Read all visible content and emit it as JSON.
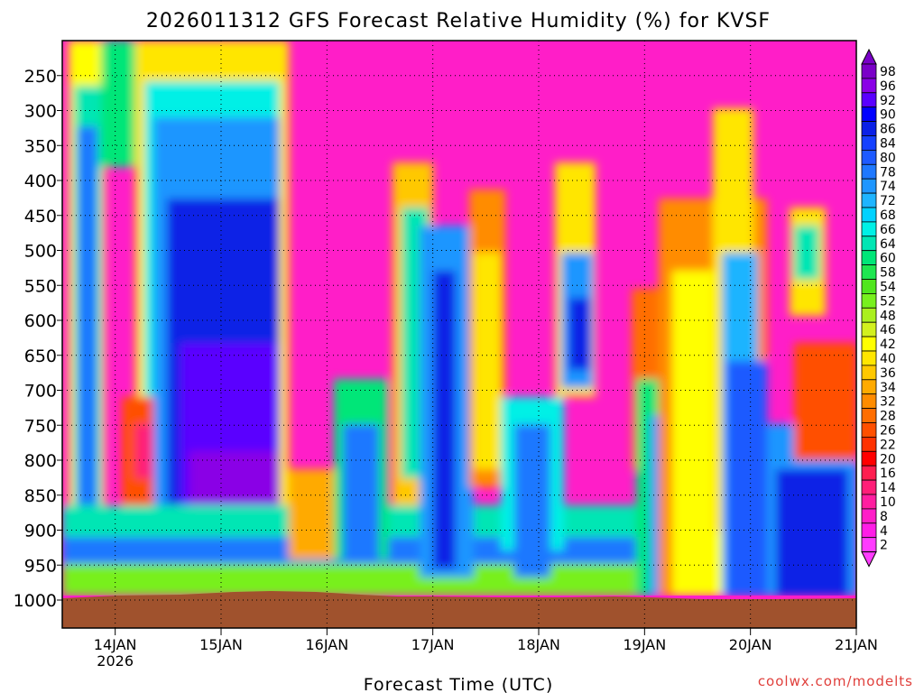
{
  "chart_data": {
    "type": "heatmap",
    "title": "2026011312 GFS Forecast Relative Humidity (%) for KVSF",
    "xlabel": "Forecast Time (UTC)",
    "ylabel": "",
    "x_ticks": [
      {
        "day": 14,
        "label": "14JAN",
        "sublabel": "2026"
      },
      {
        "day": 15,
        "label": "15JAN"
      },
      {
        "day": 16,
        "label": "16JAN"
      },
      {
        "day": 17,
        "label": "17JAN"
      },
      {
        "day": 18,
        "label": "18JAN"
      },
      {
        "day": 19,
        "label": "19JAN"
      },
      {
        "day": 20,
        "label": "20JAN"
      },
      {
        "day": 21,
        "label": "21JAN"
      }
    ],
    "x_range_days": [
      13.5,
      21.0
    ],
    "y_ticks": [
      250,
      300,
      350,
      400,
      450,
      500,
      550,
      600,
      650,
      700,
      750,
      800,
      850,
      900,
      950,
      1000
    ],
    "y_range_hpa": [
      200,
      1040
    ],
    "colorbar": {
      "labels": [
        "98",
        "96",
        "92",
        "90",
        "86",
        "84",
        "80",
        "78",
        "74",
        "72",
        "68",
        "66",
        "64",
        "60",
        "58",
        "54",
        "52",
        "48",
        "46",
        "42",
        "40",
        "36",
        "34",
        "32",
        "28",
        "26",
        "22",
        "20",
        "16",
        "14",
        "10",
        "8",
        "4",
        "2"
      ],
      "colors": [
        "#7a00c8",
        "#8a00e6",
        "#5a00ff",
        "#0000ff",
        "#0a20e6",
        "#1440ff",
        "#1e5aff",
        "#1e78ff",
        "#1e96ff",
        "#1eb4ff",
        "#00d2ff",
        "#00f0e6",
        "#00e6b4",
        "#00e678",
        "#1ee650",
        "#50e61e",
        "#78f01e",
        "#aaf01e",
        "#d2f01e",
        "#ffff00",
        "#ffe600",
        "#ffc800",
        "#ffaa00",
        "#ff8c00",
        "#ff6e00",
        "#ff5000",
        "#ff3200",
        "#ff0000",
        "#ff1e50",
        "#ff1e78",
        "#ff1ea0",
        "#ff1ec8",
        "#ff1ee6",
        "#ff3cff"
      ]
    },
    "credit": "coolwx.com/modelts",
    "surface_pressure_hpa": 960,
    "field_description": "Relative humidity vs pressure level and forecast time"
  }
}
